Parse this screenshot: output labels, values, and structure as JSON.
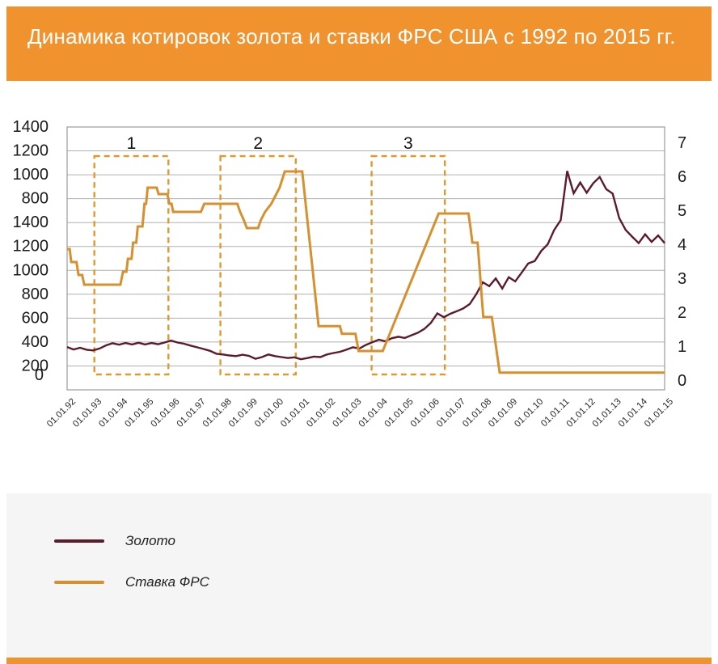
{
  "header": {
    "title": "Динамика котировок золота и ставки ФРС США с 1992 по 2015 гг.",
    "background": "#F0922E",
    "text_color": "#FFFFFF"
  },
  "chart_data": {
    "type": "line",
    "title": "Динамика котировок золота и ставки ФРС США с 1992 по 2015 гг.",
    "grid": true,
    "legend_position": "bottom",
    "left_axis_labels": [
      "1400",
      "1200",
      "1000",
      "800",
      "1400",
      "1200",
      "1000",
      "800",
      "600",
      "400",
      "200",
      "0"
    ],
    "right_axis_labels": [
      "7",
      "6",
      "5",
      "4",
      "3",
      "2",
      "1",
      "0"
    ],
    "right_axis_range": [
      0,
      7
    ],
    "x_labels": [
      "01.01.92",
      "01.01.93",
      "01.01.94",
      "01.01.95",
      "01.01.96",
      "01.01.97",
      "01.01.98",
      "01.01.99",
      "01.01.00",
      "01.01.01",
      "01.01.02",
      "01.01.03",
      "01.01.04",
      "01.01.05",
      "01.01.06",
      "01.01.07",
      "01.01.08",
      "01.01.09",
      "01.01.10",
      "01.01.11",
      "01.01.12",
      "01.01.13",
      "01.01.14",
      "01.01.15"
    ],
    "annotations": [
      {
        "label": "1",
        "from_year": 1993.05,
        "to_year": 1995.9
      },
      {
        "label": "2",
        "from_year": 1997.9,
        "to_year": 2000.8
      },
      {
        "label": "3",
        "from_year": 2003.72,
        "to_year": 2006.54
      }
    ],
    "annotation_color": "#E0992F",
    "series": [
      {
        "name": "Золото",
        "axis": "gold",
        "color": "#5C1A2A",
        "x_start": 1992,
        "x_step": 0.25,
        "values": [
          358,
          338,
          352,
          336,
          330,
          346,
          372,
          390,
          378,
          392,
          380,
          394,
          380,
          392,
          382,
          396,
          412,
          396,
          386,
          370,
          356,
          342,
          326,
          302,
          296,
          288,
          282,
          294,
          284,
          260,
          274,
          296,
          282,
          274,
          266,
          272,
          256,
          266,
          278,
          274,
          296,
          308,
          318,
          336,
          356,
          346,
          376,
          398,
          420,
          406,
          432,
          444,
          434,
          456,
          478,
          510,
          560,
          640,
          608,
          636,
          658,
          682,
          718,
          800,
          900,
          868,
          932,
          848,
          942,
          908,
          982,
          1058,
          1078,
          1162,
          1218,
          1338,
          1420,
          1832,
          1645,
          1735,
          1650,
          1728,
          1782,
          1680,
          1642,
          1438,
          1338,
          1282,
          1228,
          1302,
          1238,
          1292,
          1228
        ]
      },
      {
        "name": "Ставка ФРС",
        "axis": "fed",
        "color": "#D7902F",
        "points": [
          [
            1992.0,
            4.1
          ],
          [
            1992.1,
            4.1
          ],
          [
            1992.16,
            3.7
          ],
          [
            1992.36,
            3.7
          ],
          [
            1992.44,
            3.3
          ],
          [
            1992.58,
            3.3
          ],
          [
            1992.66,
            3.0
          ],
          [
            1994.05,
            3.0
          ],
          [
            1994.15,
            3.4
          ],
          [
            1994.28,
            3.4
          ],
          [
            1994.34,
            3.8
          ],
          [
            1994.48,
            3.8
          ],
          [
            1994.54,
            4.3
          ],
          [
            1994.66,
            4.3
          ],
          [
            1994.72,
            4.8
          ],
          [
            1994.9,
            4.8
          ],
          [
            1994.98,
            5.5
          ],
          [
            1995.04,
            5.5
          ],
          [
            1995.1,
            6.0
          ],
          [
            1995.45,
            6.0
          ],
          [
            1995.52,
            5.8
          ],
          [
            1995.86,
            5.8
          ],
          [
            1995.94,
            5.5
          ],
          [
            1996.02,
            5.5
          ],
          [
            1996.08,
            5.25
          ],
          [
            1997.15,
            5.25
          ],
          [
            1997.28,
            5.5
          ],
          [
            1998.55,
            5.5
          ],
          [
            1998.66,
            5.25
          ],
          [
            1998.8,
            5.0
          ],
          [
            1998.92,
            4.75
          ],
          [
            1999.35,
            4.75
          ],
          [
            1999.46,
            5.0
          ],
          [
            1999.62,
            5.25
          ],
          [
            1999.86,
            5.5
          ],
          [
            2000.02,
            5.75
          ],
          [
            2000.18,
            6.0
          ],
          [
            2000.38,
            6.5
          ],
          [
            2001.05,
            6.5
          ],
          [
            2001.68,
            1.72
          ],
          [
            2002.5,
            1.72
          ],
          [
            2002.58,
            1.48
          ],
          [
            2003.1,
            1.48
          ],
          [
            2003.22,
            0.95
          ],
          [
            2004.15,
            0.95
          ],
          [
            2006.3,
            5.2
          ],
          [
            2007.45,
            5.2
          ],
          [
            2007.53,
            4.75
          ],
          [
            2007.6,
            4.3
          ],
          [
            2007.8,
            4.3
          ],
          [
            2008.02,
            2.0
          ],
          [
            2008.35,
            2.0
          ],
          [
            2008.65,
            0.28
          ],
          [
            2015.0,
            0.28
          ]
        ]
      }
    ]
  },
  "legend": {
    "items": [
      {
        "label": "Золото",
        "color": "#5C1A2A"
      },
      {
        "label": "Ставка ФРС",
        "color": "#D7902F"
      }
    ]
  }
}
